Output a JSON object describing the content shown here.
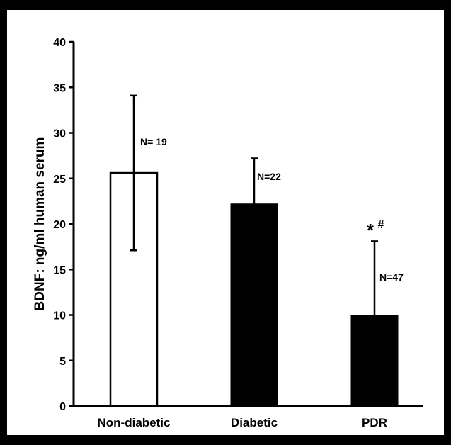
{
  "chart_data": {
    "type": "bar",
    "ylabel": "BDNF: ng/ml human serum",
    "xlabel": "",
    "ylim": [
      0,
      40
    ],
    "yticks": [
      0,
      5,
      10,
      15,
      20,
      25,
      30,
      35,
      40
    ],
    "categories": [
      "Non-diabetic",
      "Diabetic",
      "PDR"
    ],
    "values": [
      25.6,
      22.2,
      10.0
    ],
    "error": [
      8.5,
      5.0,
      8.1
    ],
    "fill": [
      "#ffffff",
      "#000000",
      "#000000"
    ],
    "n_labels": [
      "N= 19",
      "N=22",
      "N=47"
    ],
    "significance": [
      "",
      "",
      "*#"
    ]
  }
}
